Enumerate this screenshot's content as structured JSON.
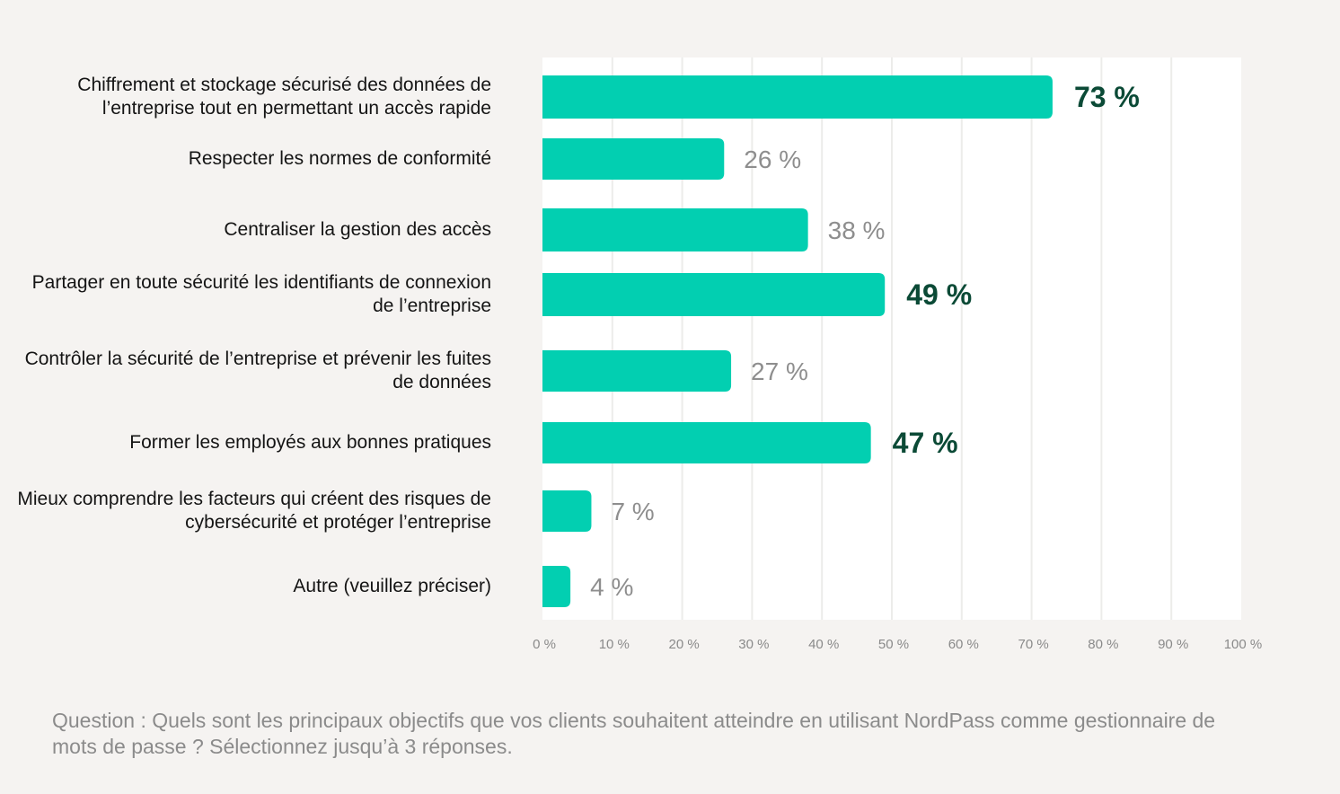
{
  "colors": {
    "background": "#f5f3f1",
    "plot_background": "#ffffff",
    "grid": "#ececea",
    "bar": "#02cfb1",
    "label_highlight": "#0b4a36",
    "label_muted": "#8e8e8e",
    "tick": "#8a8a8a"
  },
  "chart_data": {
    "type": "bar",
    "orientation": "horizontal",
    "categories": [
      "Chiffrement et stockage sécurisé des données de l’entreprise tout en permettant un accès rapide",
      "Respecter les normes de conformité",
      "Centraliser la gestion des accès",
      "Partager en toute sécurité les identifiants de connexion de l’entreprise",
      "Contrôler la sécurité de l’entreprise et prévenir les fuites de données",
      "Former les employés aux bonnes pratiques",
      "Mieux comprendre les facteurs qui créent des risques de cybersécurité et protéger l’entreprise",
      "Autre (veuillez préciser)"
    ],
    "values": [
      73,
      26,
      38,
      49,
      27,
      47,
      7,
      4
    ],
    "value_labels": [
      "73 %",
      "26 %",
      "38 %",
      "49 %",
      "27 %",
      "47 %",
      "7 %",
      "4 %"
    ],
    "highlighted": [
      true,
      false,
      false,
      true,
      false,
      true,
      false,
      false
    ],
    "xlim": [
      0,
      100
    ],
    "x_ticks": [
      0,
      10,
      20,
      30,
      40,
      50,
      60,
      70,
      80,
      90,
      100
    ],
    "x_tick_labels": [
      "0 %",
      "10 %",
      "20 %",
      "30 %",
      "40 %",
      "50 %",
      "60 %",
      "70 %",
      "80 %",
      "90 %",
      "100 %"
    ],
    "grid": true,
    "title": "",
    "xlabel": "",
    "ylabel": ""
  },
  "note": "Question : Quels sont les principaux objectifs que vos clients souhaitent atteindre en utilisant NordPass comme gestionnaire de mots de passe ? Sélectionnez jusqu’à 3 réponses."
}
